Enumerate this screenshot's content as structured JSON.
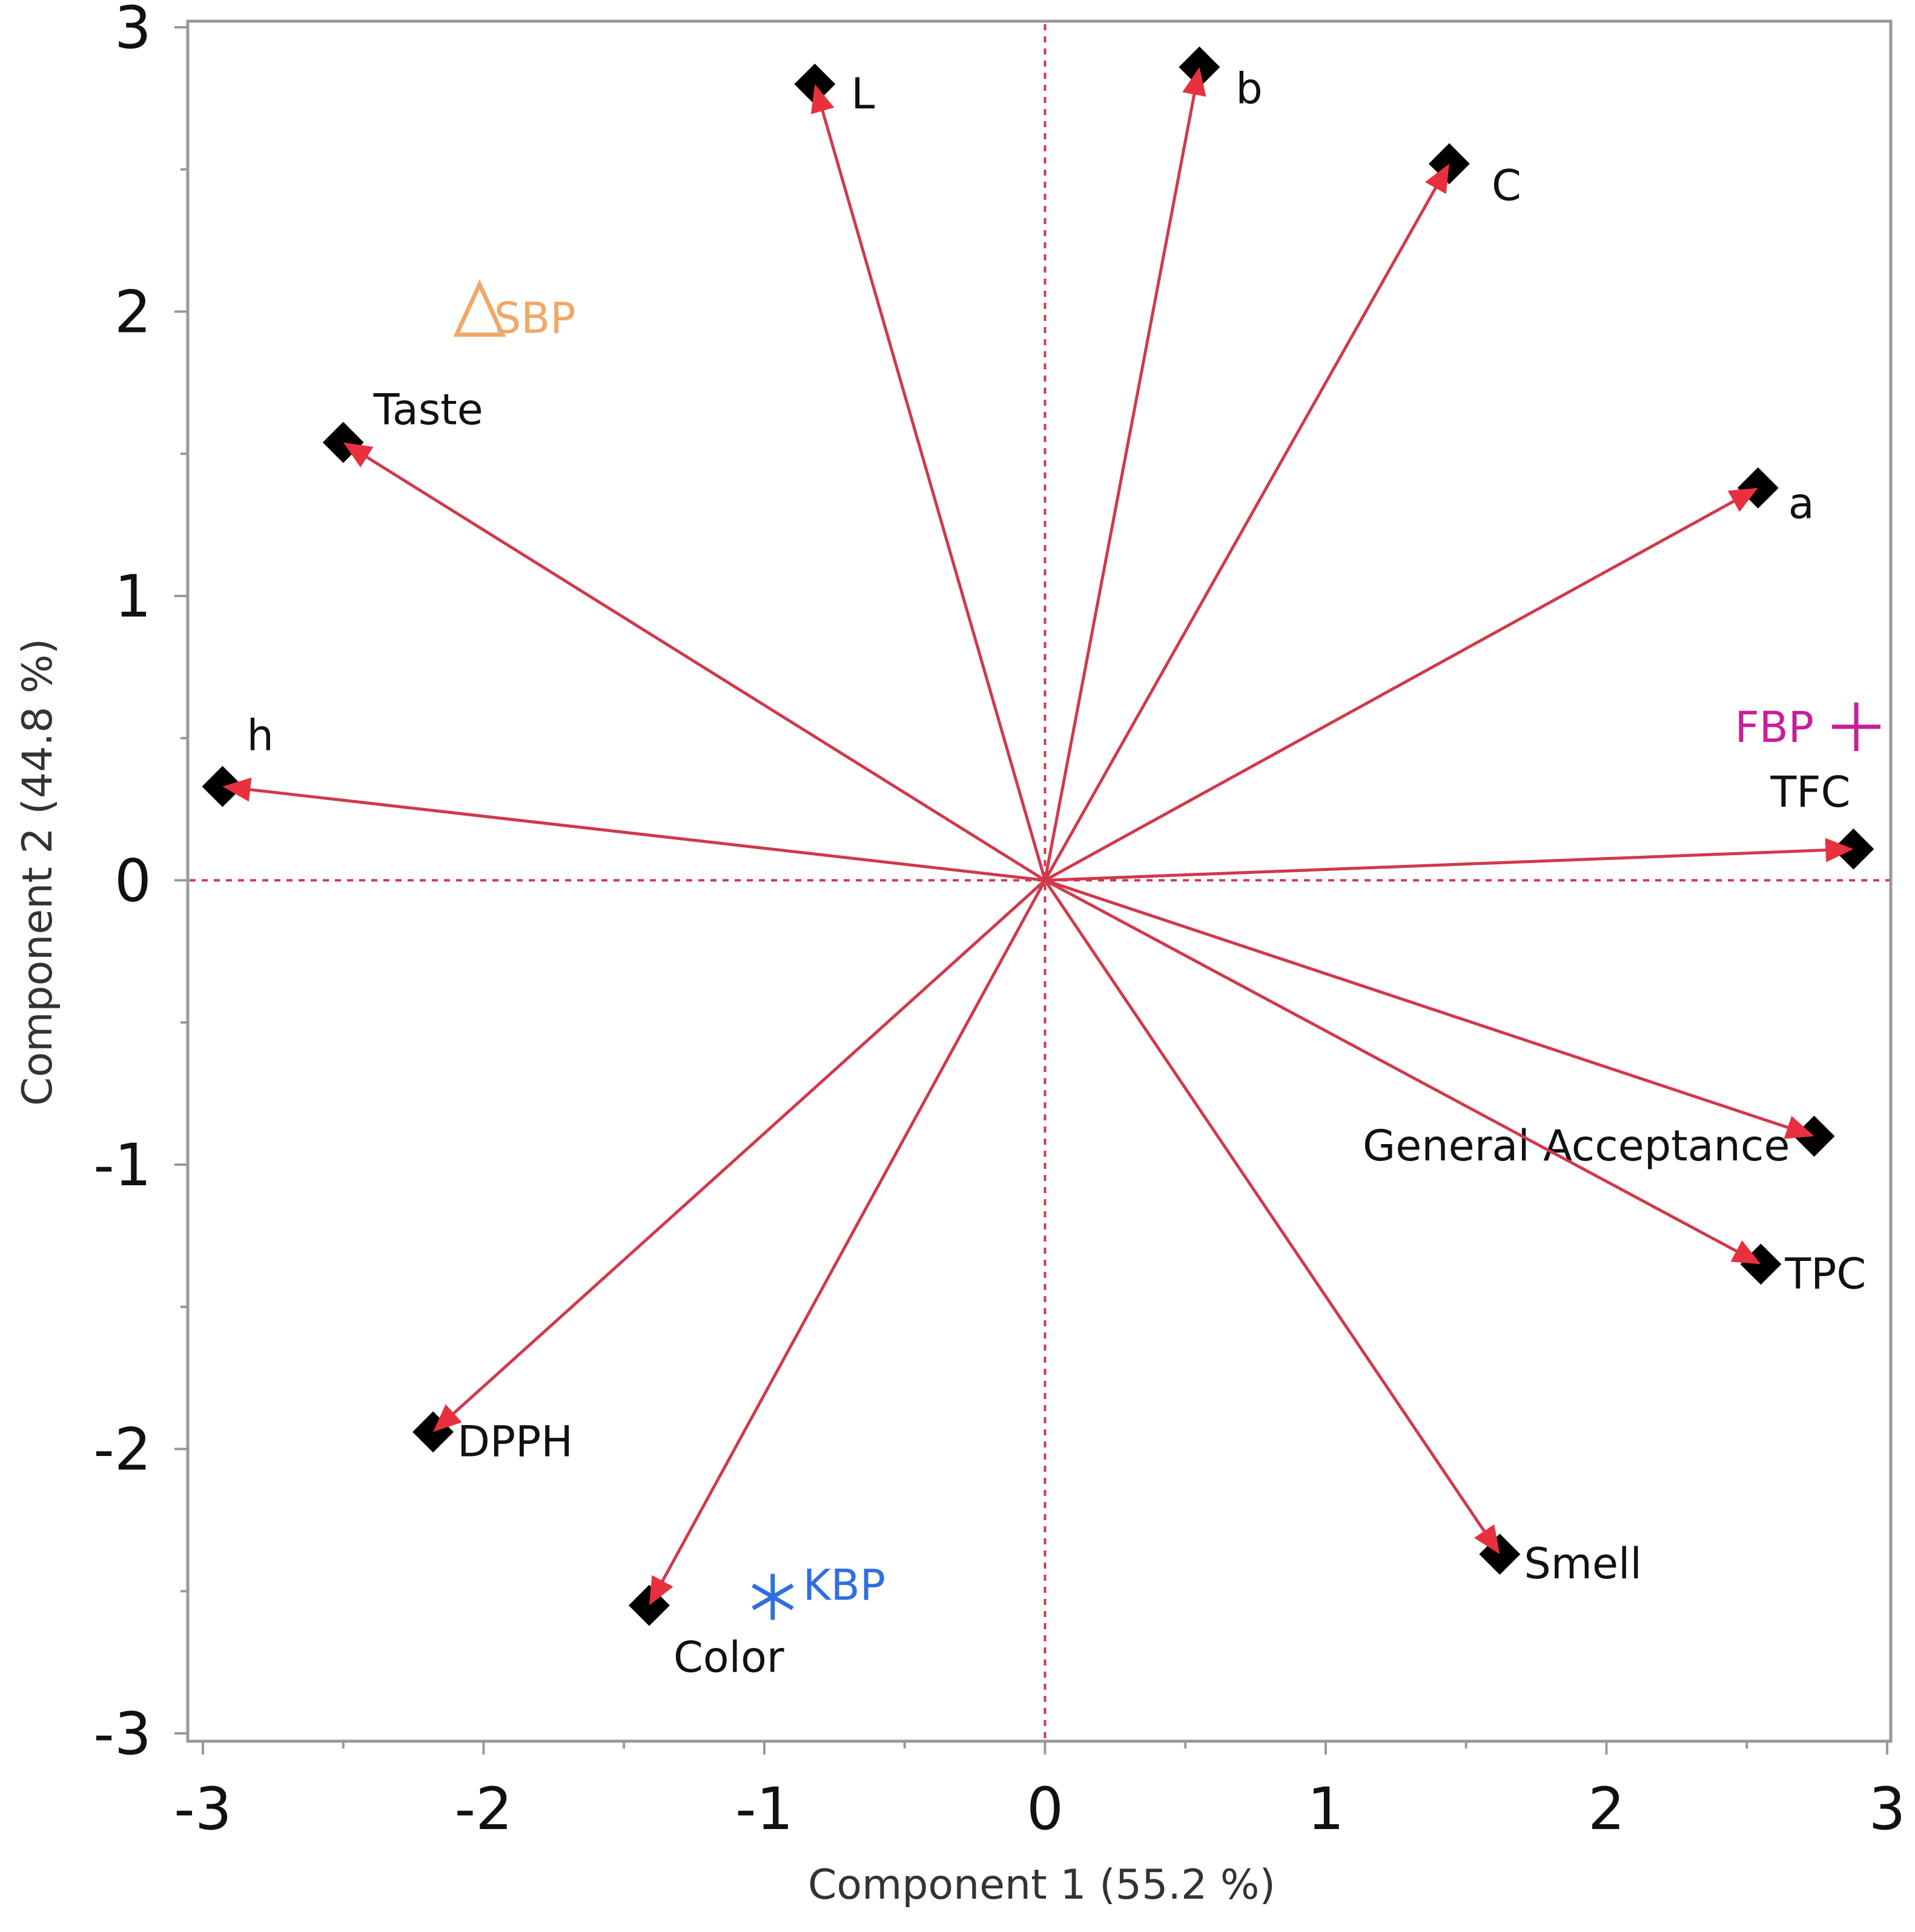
{
  "chart_data": {
    "type": "scatter",
    "subtype": "biplot",
    "xlabel": "Component 1  (55.2 %)",
    "ylabel": "Component 2  (44.8 %)",
    "xlim": [
      -3,
      3
    ],
    "ylim": [
      -3,
      3
    ],
    "xticks": [
      "-3",
      "-2",
      "-1",
      "0",
      "1",
      "2",
      "3"
    ],
    "yticks": [
      "3",
      "2",
      "1",
      "0",
      "-1",
      "-2",
      "-3"
    ],
    "grid": false,
    "reference_lines": "dashed at x=0 and y=0",
    "loadings": [
      {
        "name": "L",
        "x": -0.82,
        "y": 2.8
      },
      {
        "name": "b",
        "x": 0.55,
        "y": 2.86
      },
      {
        "name": "C",
        "x": 1.44,
        "y": 2.52
      },
      {
        "name": "a",
        "x": 2.54,
        "y": 1.38
      },
      {
        "name": "Taste",
        "x": -2.5,
        "y": 1.54
      },
      {
        "name": "h",
        "x": -2.93,
        "y": 0.33
      },
      {
        "name": "TFC",
        "x": 2.88,
        "y": 0.11
      },
      {
        "name": "General Acceptance",
        "x": 2.74,
        "y": -0.9
      },
      {
        "name": "TPC",
        "x": 2.55,
        "y": -1.35
      },
      {
        "name": "Smell",
        "x": 1.62,
        "y": -2.37
      },
      {
        "name": "DPPH",
        "x": -2.18,
        "y": -1.94
      },
      {
        "name": "Color",
        "x": -1.41,
        "y": -2.55
      }
    ],
    "scores": [
      {
        "name": "SBP",
        "x": -2.01,
        "y": 2.0,
        "marker": "triangle",
        "color": "#F0A868"
      },
      {
        "name": "FBP",
        "x": 2.89,
        "y": 0.54,
        "marker": "plus",
        "color": "#C81E9A"
      },
      {
        "name": "KBP",
        "x": -0.97,
        "y": -2.52,
        "marker": "asterisk",
        "color": "#2F6FE0"
      }
    ],
    "colors": {
      "arrow": "#D0394B",
      "arrowhead": "#E8303F",
      "marker": "#000000",
      "refline": "#D0394B",
      "frame": "#999999"
    }
  }
}
